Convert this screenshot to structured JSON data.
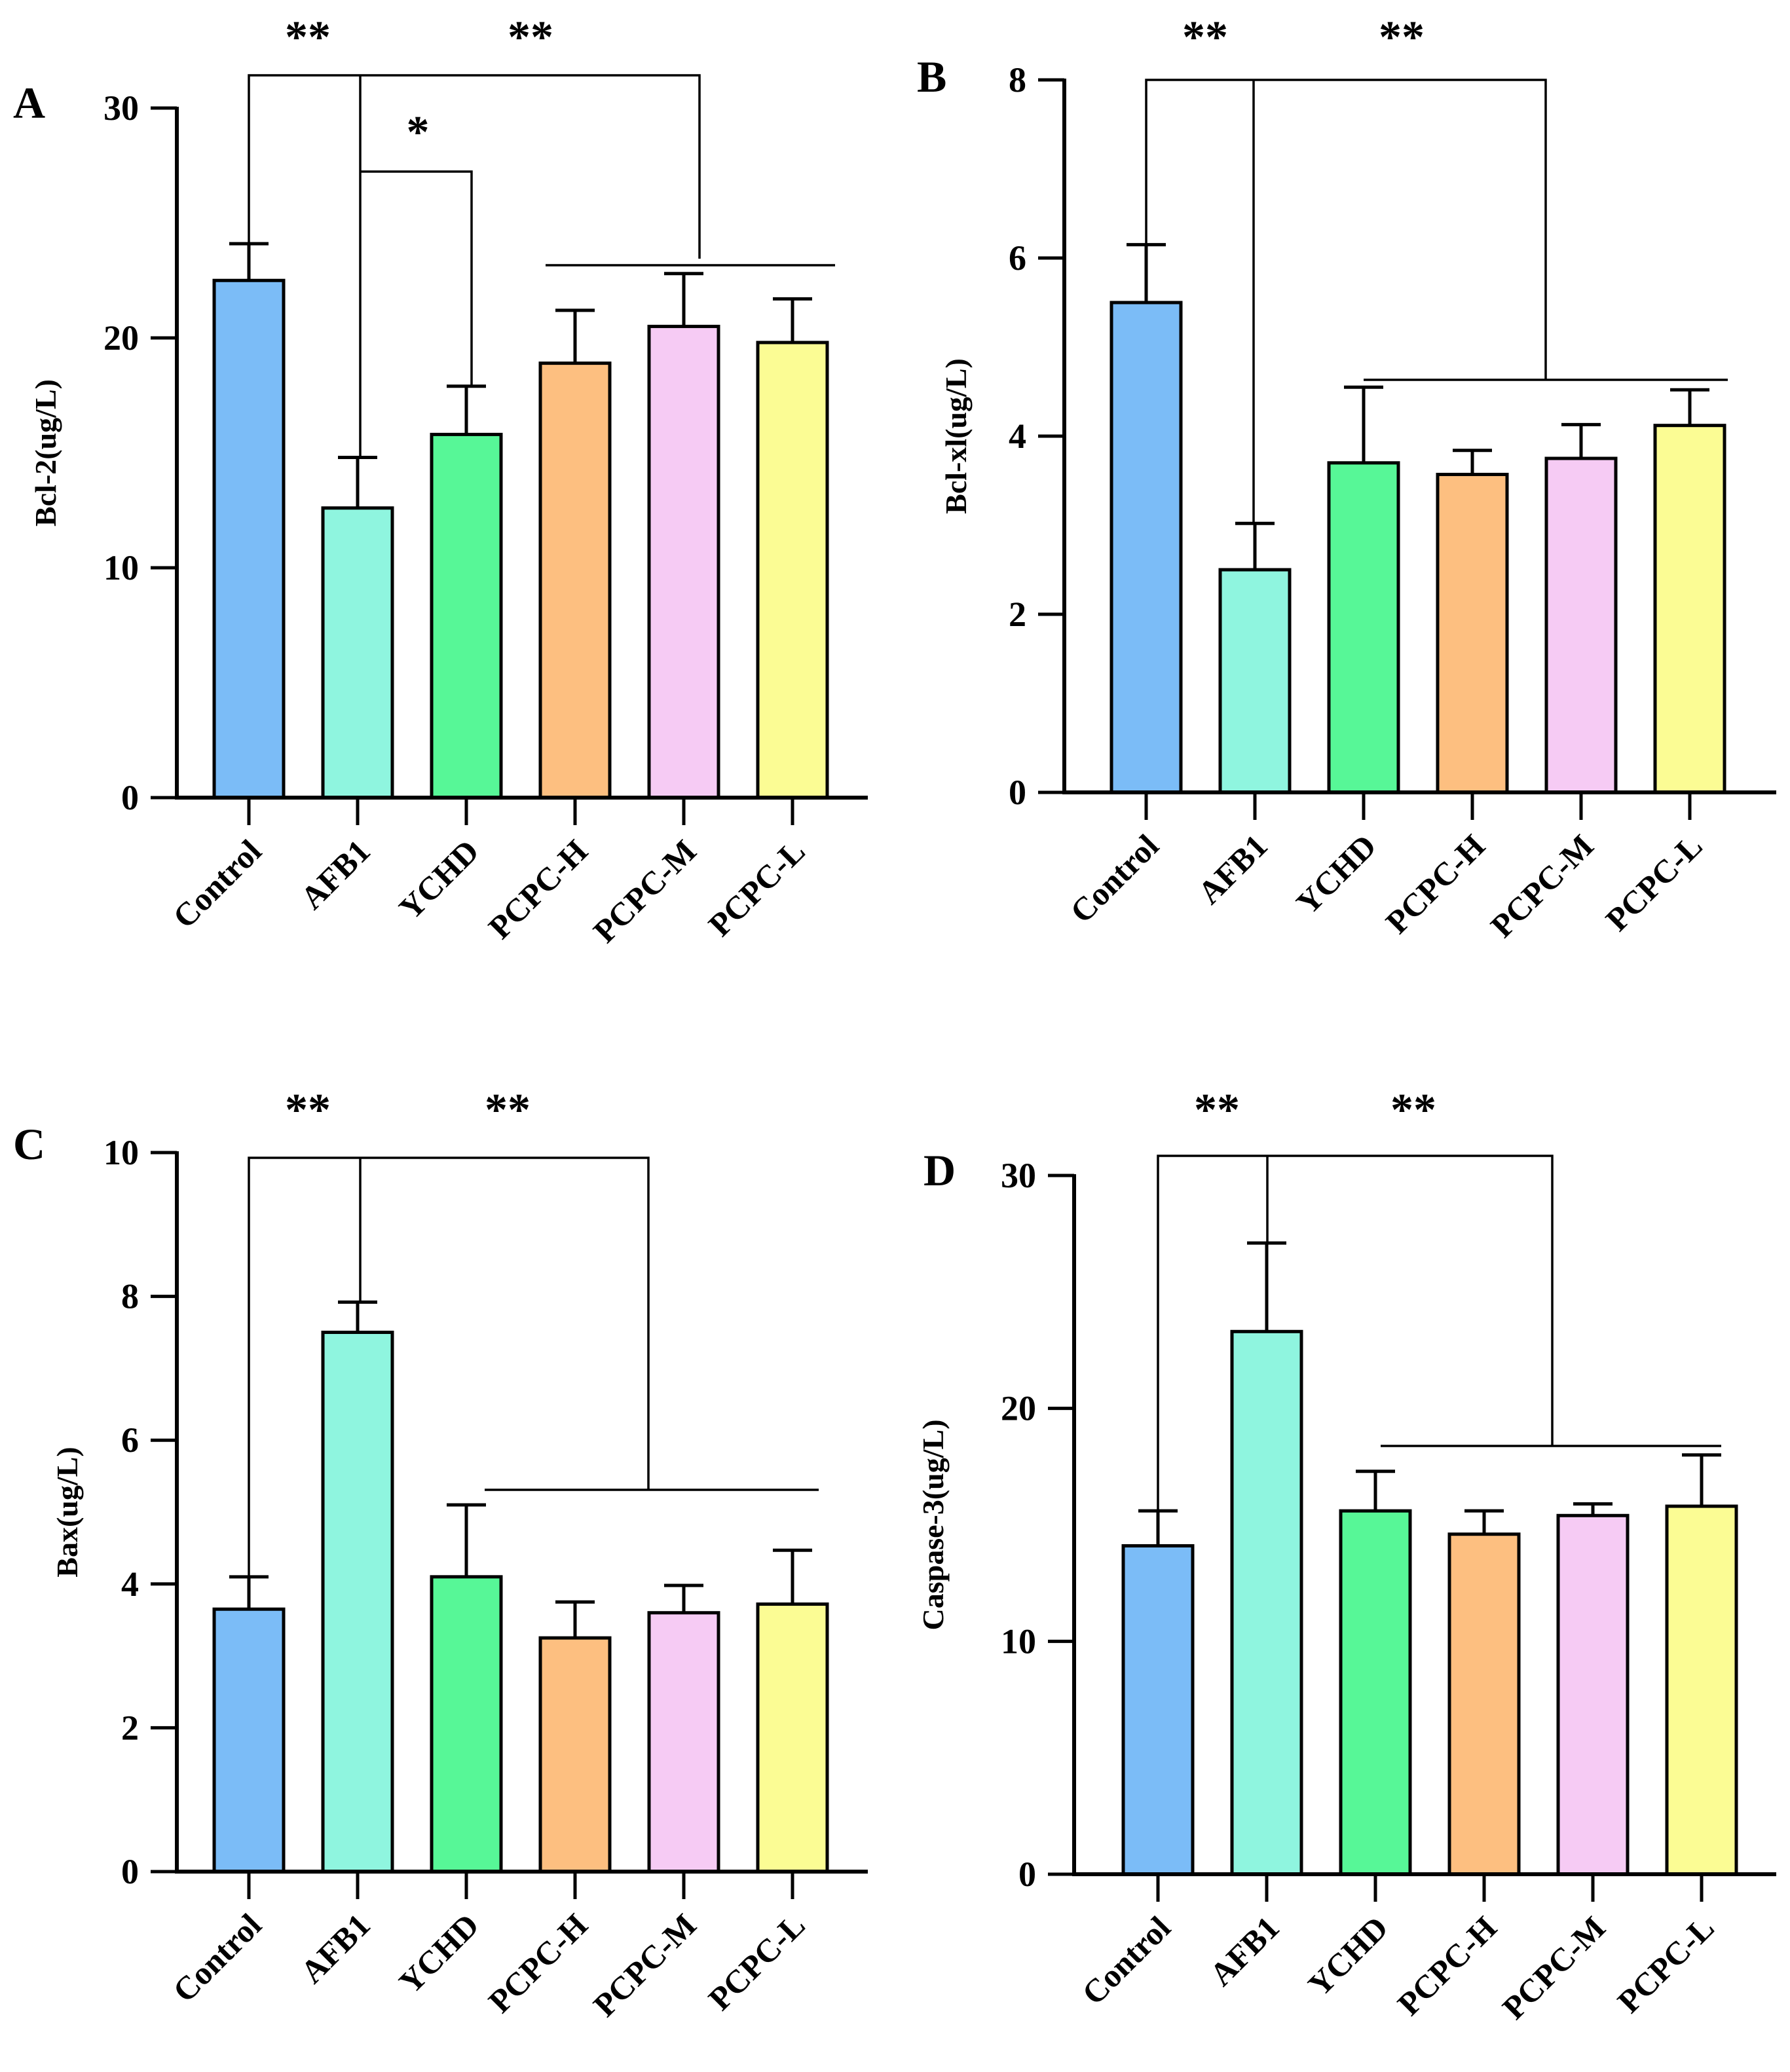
{
  "chart_data": [
    {
      "type": "bar",
      "panel": "A",
      "title": "",
      "xlabel": "",
      "ylabel": "Bcl-2(ug/L)",
      "ylim": [
        0,
        30
      ],
      "yticks": [
        "0",
        "10",
        "20",
        "30"
      ],
      "categories": [
        "Control",
        "AFB1",
        "YCHD",
        "PCPC-H",
        "PCPC-M",
        "PCPC-L"
      ],
      "values": [
        22.5,
        12.6,
        15.8,
        18.9,
        20.5,
        19.8
      ],
      "errors": [
        1.6,
        2.2,
        2.1,
        2.3,
        2.3,
        1.9
      ],
      "colors": [
        "#7bbcf7",
        "#8ff5df",
        "#57f797",
        "#fdbf80",
        "#f6cbf4",
        "#fbfc94"
      ],
      "significance": [
        {
          "label": "**",
          "groups": "Control vs AFB1"
        },
        {
          "label": "**",
          "groups": "AFB1 vs PCPC-H/M/L"
        },
        {
          "label": "*",
          "groups": "AFB1 vs YCHD"
        }
      ]
    },
    {
      "type": "bar",
      "panel": "B",
      "title": "",
      "xlabel": "",
      "ylabel": "Bcl-xl(ug/L)",
      "ylim": [
        0,
        8
      ],
      "yticks": [
        "0",
        "2",
        "4",
        "6",
        "8"
      ],
      "categories": [
        "Control",
        "AFB1",
        "YCHD",
        "PCPC-H",
        "PCPC-M",
        "PCPC-L"
      ],
      "values": [
        5.5,
        2.5,
        3.7,
        3.57,
        3.75,
        4.12
      ],
      "errors": [
        0.65,
        0.52,
        0.85,
        0.27,
        0.38,
        0.4
      ],
      "colors": [
        "#7bbcf7",
        "#8ff5df",
        "#57f797",
        "#fdbf80",
        "#f6cbf4",
        "#fbfc94"
      ],
      "significance": [
        {
          "label": "**",
          "groups": "Control vs AFB1"
        },
        {
          "label": "**",
          "groups": "AFB1 vs YCHD/PCPC-H/M/L"
        }
      ]
    },
    {
      "type": "bar",
      "panel": "C",
      "title": "",
      "xlabel": "",
      "ylabel": "Bax(ug/L)",
      "ylim": [
        0,
        10
      ],
      "yticks": [
        "0",
        "2",
        "4",
        "6",
        "8",
        "10"
      ],
      "categories": [
        "Control",
        "AFB1",
        "YCHD",
        "PCPC-H",
        "PCPC-M",
        "PCPC-L"
      ],
      "values": [
        3.65,
        7.5,
        4.1,
        3.25,
        3.6,
        3.72
      ],
      "errors": [
        0.45,
        0.42,
        1.0,
        0.5,
        0.38,
        0.75
      ],
      "colors": [
        "#7bbcf7",
        "#8ff5df",
        "#57f797",
        "#fdbf80",
        "#f6cbf4",
        "#fbfc94"
      ],
      "significance": [
        {
          "label": "**",
          "groups": "Control vs AFB1"
        },
        {
          "label": "**",
          "groups": "AFB1 vs YCHD/PCPC-H/M/L"
        }
      ]
    },
    {
      "type": "bar",
      "panel": "D",
      "title": "",
      "xlabel": "",
      "ylabel": "Caspase-3(ug/L)",
      "ylim": [
        0,
        30
      ],
      "yticks": [
        "0",
        "10",
        "20",
        "30"
      ],
      "categories": [
        "Control",
        "AFB1",
        "YCHD",
        "PCPC-H",
        "PCPC-M",
        "PCPC-L"
      ],
      "values": [
        14.1,
        23.3,
        15.6,
        14.6,
        15.4,
        15.8
      ],
      "errors": [
        1.5,
        3.8,
        1.7,
        1.0,
        0.5,
        2.2
      ],
      "colors": [
        "#7bbcf7",
        "#8ff5df",
        "#57f797",
        "#fdbf80",
        "#f6cbf4",
        "#fbfc94"
      ],
      "significance": [
        {
          "label": "**",
          "groups": "Control vs AFB1"
        },
        {
          "label": "**",
          "groups": "AFB1 vs YCHD/PCPC-H/M/L"
        }
      ]
    }
  ]
}
